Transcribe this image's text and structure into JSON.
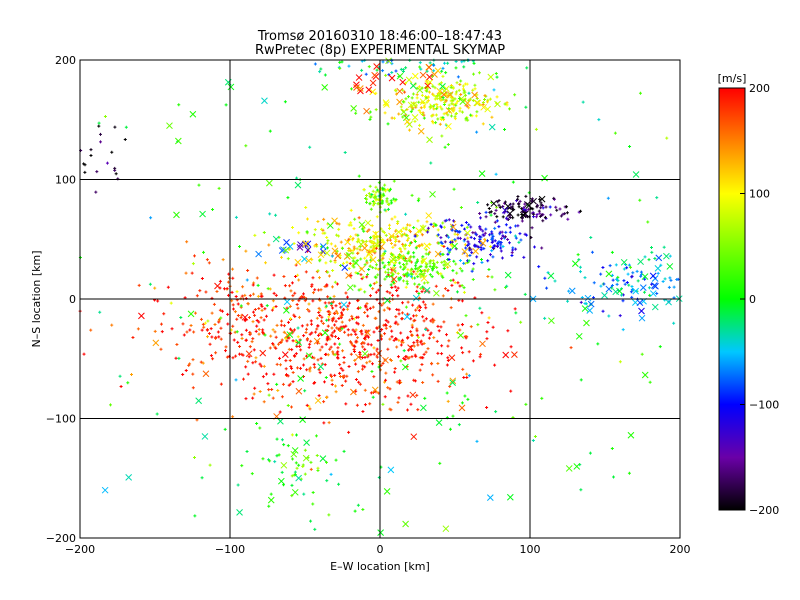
{
  "chart_data": {
    "type": "scatter",
    "title": "Tromsø 20160310 18:46:00–18:47:43",
    "subtitle": "RwPretec (8p) EXPERIMENTAL SKYMAP",
    "xlabel": "E–W location [km]",
    "ylabel": "N–S location [km]",
    "xlim": [
      -200,
      200
    ],
    "ylim": [
      -200,
      200
    ],
    "x_ticks": [
      -200,
      -100,
      0,
      100,
      200
    ],
    "y_ticks": [
      -200,
      -100,
      0,
      100,
      200
    ],
    "x_tick_labels": [
      "−200",
      "−100",
      "0",
      "100",
      "200"
    ],
    "y_tick_labels": [
      "−200",
      "−100",
      "0",
      "100",
      "200"
    ],
    "grid": true,
    "colorbar": {
      "label": "[m/s]",
      "min": -200,
      "max": 200,
      "ticks": [
        200,
        100,
        0,
        -100,
        -200
      ],
      "tick_labels": [
        "200",
        "100",
        "0",
        "−100",
        "−200"
      ],
      "colormap": "rainbow"
    },
    "marker_styles": [
      "plus (small)",
      "cross (large)"
    ],
    "clusters": [
      {
        "x": -20,
        "y": -30,
        "sx": 45,
        "sy": 28,
        "v": 190,
        "n": 650,
        "marker": "plus"
      },
      {
        "x": -80,
        "y": -20,
        "sx": 40,
        "sy": 25,
        "v": 175,
        "n": 220,
        "marker": "plus"
      },
      {
        "x": -5,
        "y": 48,
        "sx": 30,
        "sy": 10,
        "v": 100,
        "n": 260,
        "marker": "plus"
      },
      {
        "x": 20,
        "y": 25,
        "sx": 20,
        "sy": 8,
        "v": 40,
        "n": 200,
        "marker": "plus"
      },
      {
        "x": 0,
        "y": 85,
        "sx": 6,
        "sy": 5,
        "v": 40,
        "n": 80,
        "marker": "plus"
      },
      {
        "x": 65,
        "y": 50,
        "sx": 18,
        "sy": 9,
        "v": -110,
        "n": 170,
        "marker": "plus"
      },
      {
        "x": 100,
        "y": 75,
        "sx": 15,
        "sy": 5,
        "v": -175,
        "n": 110,
        "marker": "plus"
      },
      {
        "x": 40,
        "y": 165,
        "sx": 18,
        "sy": 10,
        "v": 85,
        "n": 220,
        "marker": "plus"
      },
      {
        "x": 20,
        "y": 195,
        "sx": 40,
        "sy": 5,
        "v": -40,
        "n": 70,
        "marker": "plus"
      },
      {
        "x": -55,
        "y": -140,
        "sx": 12,
        "sy": 20,
        "v": 30,
        "n": 45,
        "marker": "plus"
      },
      {
        "x": 170,
        "y": 15,
        "sx": 25,
        "sy": 12,
        "v": -60,
        "n": 110,
        "marker": "plus"
      },
      {
        "x": -190,
        "y": 120,
        "sx": 10,
        "sy": 15,
        "v": -195,
        "n": 20,
        "marker": "plus"
      },
      {
        "x": 0,
        "y": 0,
        "sx": 130,
        "sy": 130,
        "v": 0,
        "n": 260,
        "marker": "plus"
      },
      {
        "x": -60,
        "y": 42,
        "sx": 10,
        "sy": 4,
        "v": -90,
        "n": 14,
        "marker": "cross"
      },
      {
        "x": 5,
        "y": 45,
        "sx": 30,
        "sy": 12,
        "v": 110,
        "n": 40,
        "marker": "cross"
      },
      {
        "x": 35,
        "y": 165,
        "sx": 25,
        "sy": 15,
        "v": 100,
        "n": 40,
        "marker": "cross"
      },
      {
        "x": 170,
        "y": 10,
        "sx": 25,
        "sy": 15,
        "v": -40,
        "n": 40,
        "marker": "cross"
      },
      {
        "x": -20,
        "y": -40,
        "sx": 60,
        "sy": 30,
        "v": 170,
        "n": 30,
        "marker": "cross"
      },
      {
        "x": 95,
        "y": 78,
        "sx": 12,
        "sy": 5,
        "v": -190,
        "n": 10,
        "marker": "cross"
      },
      {
        "x": 0,
        "y": 185,
        "sx": 18,
        "sy": 8,
        "v": 190,
        "n": 18,
        "marker": "cross"
      },
      {
        "x": -55,
        "y": -140,
        "sx": 12,
        "sy": 20,
        "v": 20,
        "n": 10,
        "marker": "cross"
      },
      {
        "x": 0,
        "y": 0,
        "sx": 130,
        "sy": 130,
        "v": 0,
        "n": 90,
        "marker": "cross"
      }
    ]
  }
}
